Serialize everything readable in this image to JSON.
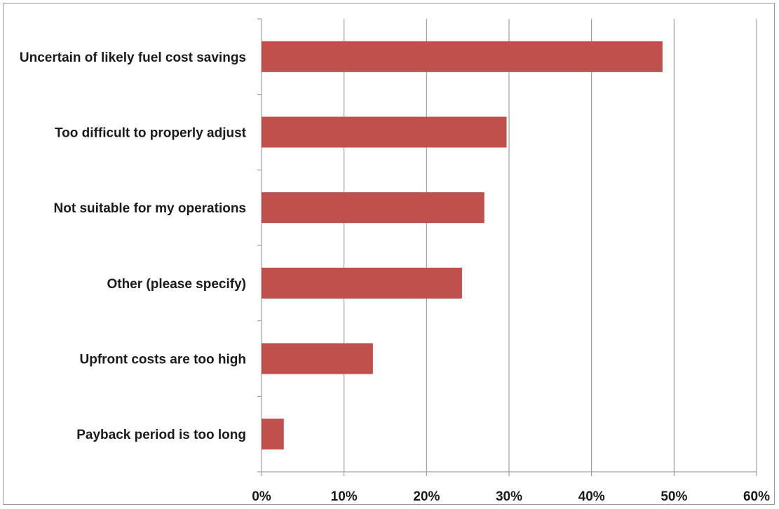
{
  "chart_data": {
    "type": "bar",
    "orientation": "horizontal",
    "categories": [
      "Uncertain of likely fuel cost savings",
      "Too difficult to properly adjust",
      "Not suitable for my operations",
      "Other (please specify)",
      "Upfront costs are too high",
      "Payback period is too long"
    ],
    "values": [
      48.6,
      29.7,
      27.0,
      24.3,
      13.5,
      2.7
    ],
    "x_ticks": [
      "0%",
      "10%",
      "20%",
      "30%",
      "40%",
      "50%",
      "60%"
    ],
    "xlim": [
      0,
      60
    ],
    "grid": "vertical",
    "legend": "none",
    "colors": {
      "bar": "#c0504d",
      "grid": "#8c8c8c",
      "axis": "#8c8c8c"
    }
  }
}
